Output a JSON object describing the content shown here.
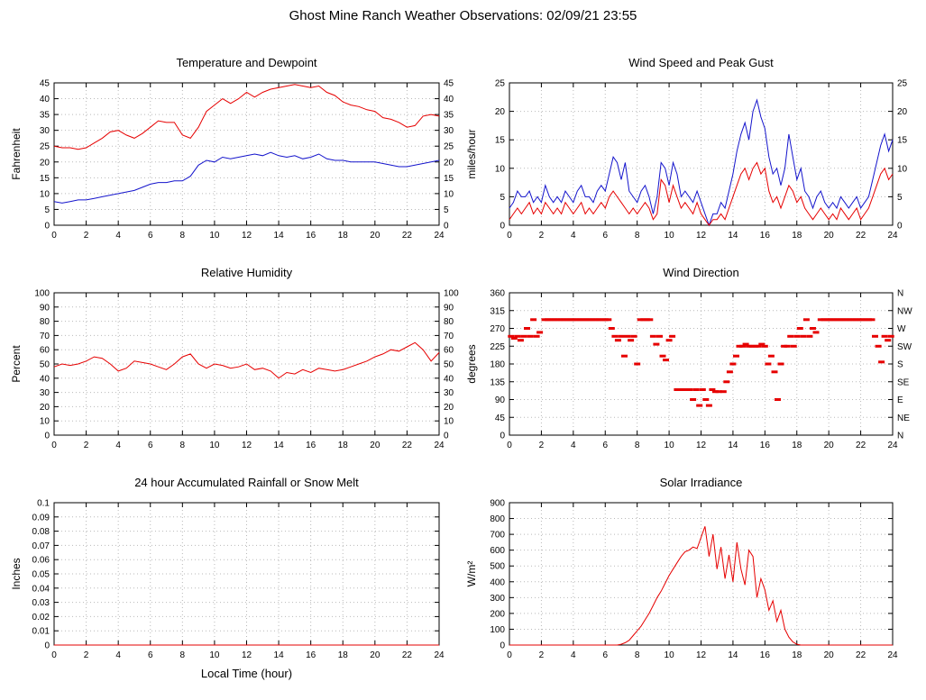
{
  "header": {
    "title": "Ghost Mine Ranch Weather Observations: 02/09/21 23:55"
  },
  "colors": {
    "red": "#e60000",
    "blue": "#1414cc",
    "grid": "#b9b9b9",
    "axis": "#000000"
  },
  "chart_data": [
    {
      "id": "temperature-dewpoint",
      "type": "line",
      "title": "Temperature and Dewpoint",
      "ylabel": "Fahrenheit",
      "xlabel": "",
      "xlim": [
        0,
        24
      ],
      "xtick_step": 2,
      "ylim": [
        0,
        45
      ],
      "ytick_step": 5,
      "right_labels": "mirror",
      "series": [
        {
          "name": "Temperature",
          "color": "#e60000",
          "x_start": 0,
          "x_step": 0.5,
          "values": [
            25,
            24.5,
            24.5,
            24,
            24.5,
            26,
            27.5,
            29.5,
            30,
            28.5,
            27.5,
            29,
            31,
            33,
            32.5,
            32.5,
            28.5,
            27.5,
            31,
            36,
            38,
            40,
            38.5,
            40,
            42,
            40.5,
            42,
            43,
            43.5,
            44,
            44.5,
            44,
            43.5,
            44,
            42,
            41,
            39,
            38,
            37.5,
            36.5,
            36,
            34,
            33.5,
            32.5,
            31,
            31.5,
            34.5,
            35,
            34.5
          ]
        },
        {
          "name": "Dewpoint",
          "color": "#1414cc",
          "x_start": 0,
          "x_step": 0.5,
          "values": [
            7.5,
            7,
            7.5,
            8,
            8,
            8.5,
            9,
            9.5,
            10,
            10.5,
            11,
            12,
            13,
            13.5,
            13.5,
            14,
            14,
            15.5,
            19,
            20.5,
            20,
            21.5,
            21,
            21.5,
            22,
            22.5,
            22,
            23,
            22,
            21.5,
            22,
            21,
            21.5,
            22.5,
            21,
            20.5,
            20.5,
            20,
            20,
            20,
            20,
            19.5,
            19,
            18.5,
            18.5,
            19,
            19.5,
            20,
            20.5
          ]
        }
      ]
    },
    {
      "id": "wind-speed-gust",
      "type": "line",
      "title": "Wind Speed and Peak Gust",
      "ylabel": "miles/hour",
      "xlabel": "",
      "xlim": [
        0,
        24
      ],
      "xtick_step": 2,
      "ylim": [
        0,
        25
      ],
      "ytick_step": 5,
      "right_labels": "mirror",
      "series": [
        {
          "name": "Peak Gust",
          "color": "#1414cc",
          "x_start": 0,
          "x_step": 0.25,
          "values": [
            3,
            4,
            6,
            5,
            5,
            6,
            4,
            5,
            4,
            7,
            5,
            4,
            5,
            4,
            6,
            5,
            4,
            6,
            7,
            5,
            5,
            4,
            6,
            7,
            6,
            9,
            12,
            11,
            8,
            11,
            6,
            5,
            4,
            6,
            7,
            5,
            2,
            5,
            11,
            10,
            7,
            11,
            9,
            5,
            6,
            5,
            4,
            6,
            4,
            2,
            0,
            2,
            2,
            4,
            3,
            6,
            9,
            13,
            16,
            18,
            15,
            20,
            22,
            19,
            17,
            12,
            9,
            10,
            7,
            10,
            16,
            12,
            8,
            10,
            6,
            5,
            3,
            5,
            6,
            4,
            3,
            4,
            3,
            5,
            4,
            3,
            4,
            5,
            3,
            4,
            5,
            8,
            11,
            14,
            16,
            13,
            15
          ]
        },
        {
          "name": "Wind Speed",
          "color": "#e60000",
          "x_start": 0,
          "x_step": 0.25,
          "values": [
            1,
            2,
            3,
            2,
            3,
            4,
            2,
            3,
            2,
            4,
            3,
            2,
            3,
            2,
            4,
            3,
            2,
            3,
            4,
            2,
            3,
            2,
            3,
            4,
            3,
            5,
            6,
            5,
            4,
            3,
            2,
            3,
            2,
            3,
            4,
            3,
            1,
            2,
            8,
            7,
            4,
            7,
            5,
            3,
            4,
            3,
            2,
            4,
            2,
            1,
            0,
            1,
            1,
            2,
            1,
            3,
            5,
            7,
            9,
            10,
            8,
            10,
            11,
            9,
            10,
            6,
            4,
            5,
            3,
            5,
            7,
            6,
            4,
            5,
            3,
            2,
            1,
            2,
            3,
            2,
            1,
            2,
            1,
            3,
            2,
            1,
            2,
            3,
            1,
            2,
            3,
            5,
            7,
            9,
            10,
            8,
            9
          ]
        }
      ]
    },
    {
      "id": "relative-humidity",
      "type": "line",
      "title": "Relative Humidity",
      "ylabel": "Percent",
      "xlabel": "",
      "xlim": [
        0,
        24
      ],
      "xtick_step": 2,
      "ylim": [
        0,
        100
      ],
      "ytick_step": 10,
      "right_labels": "mirror",
      "series": [
        {
          "name": "Relative Humidity",
          "color": "#e60000",
          "x_start": 0,
          "x_step": 0.5,
          "values": [
            48,
            50,
            49,
            50,
            52,
            55,
            54,
            50,
            45,
            47,
            52,
            51,
            50,
            48,
            46,
            50,
            55,
            57,
            50,
            47,
            50,
            49,
            47,
            48,
            50,
            46,
            47,
            45,
            40,
            44,
            43,
            46,
            44,
            47,
            46,
            45,
            46,
            48,
            50,
            52,
            55,
            57,
            60,
            59,
            62,
            65,
            60,
            52,
            58
          ]
        }
      ]
    },
    {
      "id": "wind-direction",
      "type": "scatter",
      "title": "Wind Direction",
      "ylabel": "degrees",
      "xlabel": "",
      "xlim": [
        0,
        24
      ],
      "xtick_step": 2,
      "ylim": [
        0,
        360
      ],
      "ytick_step": 45,
      "right_labels": [
        "N",
        "NE",
        "E",
        "SE",
        "S",
        "SW",
        "W",
        "NW",
        "N"
      ],
      "series": [
        {
          "name": "Wind Direction",
          "color": "#e60000",
          "points": [
            [
              0.1,
              250
            ],
            [
              0.3,
              245
            ],
            [
              0.5,
              250
            ],
            [
              0.7,
              240
            ],
            [
              0.9,
              250
            ],
            [
              1.1,
              270
            ],
            [
              1.3,
              250
            ],
            [
              1.5,
              292
            ],
            [
              1.7,
              250
            ],
            [
              1.9,
              260
            ],
            [
              2.2,
              292
            ],
            [
              2.4,
              292
            ],
            [
              2.6,
              292
            ],
            [
              2.8,
              292
            ],
            [
              3,
              292
            ],
            [
              3.2,
              292
            ],
            [
              3.4,
              292
            ],
            [
              3.6,
              292
            ],
            [
              3.8,
              292
            ],
            [
              4,
              292
            ],
            [
              4.2,
              292
            ],
            [
              4.4,
              292
            ],
            [
              4.6,
              292
            ],
            [
              4.8,
              292
            ],
            [
              5,
              292
            ],
            [
              5.2,
              292
            ],
            [
              5.4,
              292
            ],
            [
              5.6,
              292
            ],
            [
              5.8,
              292
            ],
            [
              6,
              292
            ],
            [
              6.2,
              292
            ],
            [
              6.4,
              270
            ],
            [
              6.6,
              250
            ],
            [
              6.8,
              240
            ],
            [
              7,
              250
            ],
            [
              7.2,
              200
            ],
            [
              7.4,
              250
            ],
            [
              7.6,
              240
            ],
            [
              7.8,
              250
            ],
            [
              8,
              180
            ],
            [
              8.2,
              292
            ],
            [
              8.4,
              292
            ],
            [
              8.6,
              292
            ],
            [
              8.8,
              292
            ],
            [
              9,
              250
            ],
            [
              9.2,
              230
            ],
            [
              9.4,
              250
            ],
            [
              9.6,
              200
            ],
            [
              9.8,
              190
            ],
            [
              10,
              240
            ],
            [
              10.2,
              250
            ],
            [
              10.5,
              115
            ],
            [
              10.7,
              115
            ],
            [
              10.9,
              115
            ],
            [
              11.1,
              115
            ],
            [
              11.3,
              115
            ],
            [
              11.5,
              90
            ],
            [
              11.7,
              115
            ],
            [
              11.9,
              75
            ],
            [
              12.1,
              115
            ],
            [
              12.3,
              90
            ],
            [
              12.5,
              75
            ],
            [
              12.7,
              115
            ],
            [
              12.9,
              110
            ],
            [
              13.1,
              110
            ],
            [
              13.4,
              110
            ],
            [
              13.6,
              135
            ],
            [
              13.8,
              160
            ],
            [
              14,
              180
            ],
            [
              14.2,
              200
            ],
            [
              14.4,
              225
            ],
            [
              14.6,
              225
            ],
            [
              14.8,
              230
            ],
            [
              15,
              225
            ],
            [
              15.2,
              225
            ],
            [
              15.4,
              225
            ],
            [
              15.6,
              225
            ],
            [
              15.8,
              230
            ],
            [
              16,
              225
            ],
            [
              16.2,
              180
            ],
            [
              16.4,
              200
            ],
            [
              16.6,
              160
            ],
            [
              16.8,
              90
            ],
            [
              17,
              180
            ],
            [
              17.2,
              225
            ],
            [
              17.4,
              225
            ],
            [
              17.6,
              250
            ],
            [
              17.8,
              225
            ],
            [
              18,
              250
            ],
            [
              18.2,
              270
            ],
            [
              18.4,
              250
            ],
            [
              18.6,
              292
            ],
            [
              18.8,
              250
            ],
            [
              19,
              270
            ],
            [
              19.2,
              260
            ],
            [
              19.5,
              292
            ],
            [
              19.7,
              292
            ],
            [
              19.9,
              292
            ],
            [
              20.1,
              292
            ],
            [
              20.3,
              292
            ],
            [
              20.5,
              292
            ],
            [
              20.7,
              292
            ],
            [
              20.9,
              292
            ],
            [
              21.1,
              292
            ],
            [
              21.3,
              292
            ],
            [
              21.5,
              292
            ],
            [
              21.7,
              292
            ],
            [
              21.9,
              292
            ],
            [
              22.1,
              292
            ],
            [
              22.3,
              292
            ],
            [
              22.5,
              292
            ],
            [
              22.7,
              292
            ],
            [
              22.9,
              250
            ],
            [
              23.1,
              225
            ],
            [
              23.3,
              185
            ],
            [
              23.5,
              250
            ],
            [
              23.7,
              240
            ],
            [
              23.9,
              250
            ]
          ]
        }
      ]
    },
    {
      "id": "rainfall",
      "type": "line",
      "title": "24 hour Accumulated Rainfall or Snow Melt",
      "ylabel": "Inches",
      "xlabel": "Local Time (hour)",
      "xlim": [
        0,
        24
      ],
      "xtick_step": 2,
      "ylim": [
        0,
        0.1
      ],
      "ytick_step": 0.01,
      "right_labels": null,
      "series": [
        {
          "name": "Rainfall",
          "color": "#e60000",
          "x_start": 0,
          "x_step": 24,
          "values": [
            0,
            0
          ]
        }
      ]
    },
    {
      "id": "solar-irradiance",
      "type": "line",
      "title": "Solar Irradiance",
      "ylabel": "W/m²",
      "xlabel": "",
      "xlim": [
        0,
        24
      ],
      "xtick_step": 2,
      "ylim": [
        0,
        900
      ],
      "ytick_step": 100,
      "right_labels": null,
      "series": [
        {
          "name": "Solar Irradiance",
          "color": "#e60000",
          "x_start": 0,
          "x_step": 0.25,
          "values": [
            0,
            0,
            0,
            0,
            0,
            0,
            0,
            0,
            0,
            0,
            0,
            0,
            0,
            0,
            0,
            0,
            0,
            0,
            0,
            0,
            0,
            0,
            0,
            0,
            0,
            0,
            0,
            0,
            5,
            15,
            30,
            60,
            90,
            120,
            160,
            200,
            250,
            300,
            340,
            390,
            440,
            480,
            520,
            560,
            590,
            600,
            620,
            610,
            680,
            750,
            560,
            700,
            480,
            620,
            420,
            570,
            400,
            650,
            480,
            380,
            600,
            560,
            300,
            420,
            350,
            220,
            280,
            150,
            220,
            100,
            50,
            20,
            5,
            0,
            0,
            0,
            0,
            0,
            0,
            0,
            0,
            0,
            0,
            0,
            0,
            0,
            0,
            0,
            0,
            0,
            0,
            0,
            0,
            0,
            0,
            0,
            0
          ]
        }
      ]
    }
  ]
}
